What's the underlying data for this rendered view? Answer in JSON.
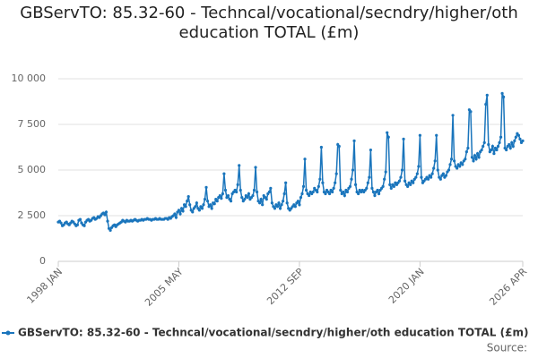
{
  "chart_data": {
    "type": "line",
    "title": "GBServTO: 85.32-60 - Techncal/vocational/secndry/higher/oth education TOTAL (£m)",
    "source": "Source:",
    "x": [
      "1998 JAN",
      "1998 FEB",
      "1998 MAR",
      "1998 APR",
      "1998 MAY",
      "1998 JUN",
      "1998 JUL",
      "1998 AUG",
      "1998 SEP",
      "1998 OCT",
      "1998 NOV",
      "1998 DEC",
      "1999 JAN",
      "1999 FEB",
      "1999 MAR",
      "1999 APR",
      "1999 MAY",
      "1999 JUN",
      "1999 JUL",
      "1999 AUG",
      "1999 SEP",
      "1999 OCT",
      "1999 NOV",
      "1999 DEC",
      "2000 JAN",
      "2000 FEB",
      "2000 MAR",
      "2000 APR",
      "2000 MAY",
      "2000 JUN",
      "2000 JUL",
      "2000 AUG",
      "2000 SEP",
      "2000 OCT",
      "2000 NOV",
      "2000 DEC",
      "2001 JAN",
      "2001 FEB",
      "2001 MAR",
      "2001 APR",
      "2001 MAY",
      "2001 JUN",
      "2001 JUL",
      "2001 AUG",
      "2001 SEP",
      "2001 OCT",
      "2001 NOV",
      "2001 DEC",
      "2002 JAN",
      "2002 FEB",
      "2002 MAR",
      "2002 APR",
      "2002 MAY",
      "2002 JUN",
      "2002 JUL",
      "2002 AUG",
      "2002 SEP",
      "2002 OCT",
      "2002 NOV",
      "2002 DEC",
      "2003 JAN",
      "2003 FEB",
      "2003 MAR",
      "2003 APR",
      "2003 MAY",
      "2003 JUN",
      "2003 JUL",
      "2003 AUG",
      "2003 SEP",
      "2003 OCT",
      "2003 NOV",
      "2003 DEC",
      "2004 JAN",
      "2004 FEB",
      "2004 MAR",
      "2004 APR",
      "2004 MAY",
      "2004 JUN",
      "2004 JUL",
      "2004 AUG",
      "2004 SEP",
      "2004 OCT",
      "2004 NOV",
      "2004 DEC",
      "2005 JAN",
      "2005 FEB",
      "2005 MAR",
      "2005 APR",
      "2005 MAY",
      "2005 JUN",
      "2005 JUL",
      "2005 AUG",
      "2005 SEP",
      "2005 OCT",
      "2005 NOV",
      "2005 DEC",
      "2006 JAN",
      "2006 FEB",
      "2006 MAR",
      "2006 APR",
      "2006 MAY",
      "2006 JUN",
      "2006 JUL",
      "2006 AUG",
      "2006 SEP",
      "2006 OCT",
      "2006 NOV",
      "2006 DEC",
      "2007 JAN",
      "2007 FEB",
      "2007 MAR",
      "2007 APR",
      "2007 MAY",
      "2007 JUN",
      "2007 JUL",
      "2007 AUG",
      "2007 SEP",
      "2007 OCT",
      "2007 NOV",
      "2007 DEC",
      "2008 JAN",
      "2008 FEB",
      "2008 MAR",
      "2008 APR",
      "2008 MAY",
      "2008 JUN",
      "2008 JUL",
      "2008 AUG",
      "2008 SEP",
      "2008 OCT",
      "2008 NOV",
      "2008 DEC",
      "2009 JAN",
      "2009 FEB",
      "2009 MAR",
      "2009 APR",
      "2009 MAY",
      "2009 JUN",
      "2009 JUL",
      "2009 AUG",
      "2009 SEP",
      "2009 OCT",
      "2009 NOV",
      "2009 DEC",
      "2010 JAN",
      "2010 FEB",
      "2010 MAR",
      "2010 APR",
      "2010 MAY",
      "2010 JUN",
      "2010 JUL",
      "2010 AUG",
      "2010 SEP",
      "2010 OCT",
      "2010 NOV",
      "2010 DEC",
      "2011 JAN",
      "2011 FEB",
      "2011 MAR",
      "2011 APR",
      "2011 MAY",
      "2011 JUN",
      "2011 JUL",
      "2011 AUG",
      "2011 SEP",
      "2011 OCT",
      "2011 NOV",
      "2011 DEC",
      "2012 JAN",
      "2012 FEB",
      "2012 MAR",
      "2012 APR",
      "2012 MAY",
      "2012 JUN",
      "2012 JUL",
      "2012 AUG",
      "2012 SEP",
      "2012 OCT",
      "2012 NOV",
      "2012 DEC",
      "2013 JAN",
      "2013 FEB",
      "2013 MAR",
      "2013 APR",
      "2013 MAY",
      "2013 JUN",
      "2013 JUL",
      "2013 AUG",
      "2013 SEP",
      "2013 OCT",
      "2013 NOV",
      "2013 DEC",
      "2014 JAN",
      "2014 FEB",
      "2014 MAR",
      "2014 APR",
      "2014 MAY",
      "2014 JUN",
      "2014 JUL",
      "2014 AUG",
      "2014 SEP",
      "2014 OCT",
      "2014 NOV",
      "2014 DEC",
      "2015 JAN",
      "2015 FEB",
      "2015 MAR",
      "2015 APR",
      "2015 MAY",
      "2015 JUN",
      "2015 JUL",
      "2015 AUG",
      "2015 SEP",
      "2015 OCT",
      "2015 NOV",
      "2015 DEC",
      "2016 JAN",
      "2016 FEB",
      "2016 MAR",
      "2016 APR",
      "2016 MAY",
      "2016 JUN",
      "2016 JUL",
      "2016 AUG",
      "2016 SEP",
      "2016 OCT",
      "2016 NOV",
      "2016 DEC",
      "2017 JAN",
      "2017 FEB",
      "2017 MAR",
      "2017 APR",
      "2017 MAY",
      "2017 JUN",
      "2017 JUL",
      "2017 AUG",
      "2017 SEP",
      "2017 OCT",
      "2017 NOV",
      "2017 DEC",
      "2018 JAN",
      "2018 FEB",
      "2018 MAR",
      "2018 APR",
      "2018 MAY",
      "2018 JUN",
      "2018 JUL",
      "2018 AUG",
      "2018 SEP",
      "2018 OCT",
      "2018 NOV",
      "2018 DEC",
      "2019 JAN",
      "2019 FEB",
      "2019 MAR",
      "2019 APR",
      "2019 MAY",
      "2019 JUN",
      "2019 JUL",
      "2019 AUG",
      "2019 SEP",
      "2019 OCT",
      "2019 NOV",
      "2019 DEC",
      "2020 JAN",
      "2020 FEB",
      "2020 MAR",
      "2020 APR",
      "2020 MAY",
      "2020 JUN",
      "2020 JUL",
      "2020 AUG",
      "2020 SEP",
      "2020 OCT",
      "2020 NOV",
      "2020 DEC",
      "2021 JAN",
      "2021 FEB",
      "2021 MAR",
      "2021 APR",
      "2021 MAY",
      "2021 JUN",
      "2021 JUL",
      "2021 AUG",
      "2021 SEP",
      "2021 OCT",
      "2021 NOV",
      "2021 DEC",
      "2022 JAN",
      "2022 FEB",
      "2022 MAR",
      "2022 APR",
      "2022 MAY",
      "2022 JUN",
      "2022 JUL",
      "2022 AUG",
      "2022 SEP",
      "2022 OCT",
      "2022 NOV",
      "2022 DEC",
      "2023 JAN",
      "2023 FEB",
      "2023 MAR",
      "2023 APR",
      "2023 MAY",
      "2023 JUN",
      "2023 JUL",
      "2023 AUG",
      "2023 SEP",
      "2023 OCT",
      "2023 NOV",
      "2023 DEC",
      "2024 JAN",
      "2024 FEB",
      "2024 MAR",
      "2024 APR",
      "2024 MAY",
      "2024 JUN",
      "2024 JUL",
      "2024 AUG",
      "2024 SEP",
      "2024 OCT",
      "2024 NOV",
      "2024 DEC",
      "2025 JAN",
      "2025 FEB",
      "2025 MAR",
      "2025 APR",
      "2025 MAY",
      "2025 JUN",
      "2025 JUL",
      "2025 AUG",
      "2025 SEP",
      "2025 OCT",
      "2025 NOV",
      "2025 DEC",
      "2026 JAN",
      "2026 FEB",
      "2026 MAR",
      "2026 APR"
    ],
    "series": [
      {
        "name": "GBServTO: 85.32-60 - Techncal/vocational/secndry/higher/oth education TOTAL (£m)",
        "color": "#1a75bc",
        "values": [
          2150,
          2200,
          2100,
          1950,
          2000,
          2100,
          2150,
          2050,
          2000,
          2100,
          2200,
          2150,
          2050,
          1950,
          2000,
          2250,
          2300,
          2100,
          2000,
          1950,
          2150,
          2250,
          2300,
          2200,
          2250,
          2350,
          2400,
          2300,
          2350,
          2450,
          2400,
          2500,
          2600,
          2650,
          2550,
          2700,
          2200,
          1800,
          1700,
          1850,
          1950,
          2000,
          1900,
          2000,
          2050,
          2100,
          2150,
          2250,
          2200,
          2150,
          2250,
          2200,
          2200,
          2250,
          2200,
          2250,
          2300,
          2250,
          2200,
          2250,
          2250,
          2300,
          2250,
          2300,
          2300,
          2350,
          2300,
          2300,
          2250,
          2300,
          2300,
          2350,
          2300,
          2300,
          2350,
          2300,
          2300,
          2300,
          2350,
          2350,
          2300,
          2400,
          2350,
          2450,
          2500,
          2600,
          2400,
          2700,
          2800,
          2600,
          2900,
          2750,
          3100,
          3000,
          3300,
          3550,
          3100,
          2800,
          2700,
          2900,
          3000,
          3200,
          2900,
          2800,
          3000,
          2900,
          3100,
          3400,
          4050,
          3300,
          3000,
          3100,
          2900,
          3200,
          3150,
          3400,
          3300,
          3500,
          3600,
          3450,
          3700,
          4800,
          3900,
          3500,
          3600,
          3400,
          3300,
          3700,
          3800,
          3900,
          3800,
          4200,
          5250,
          3900,
          3500,
          3300,
          3400,
          3600,
          3500,
          3700,
          3400,
          3500,
          3600,
          3900,
          5150,
          3800,
          3300,
          3200,
          3400,
          3100,
          3600,
          3500,
          3400,
          3700,
          3800,
          4000,
          3200,
          3000,
          2900,
          3100,
          3000,
          3200,
          2900,
          3100,
          3300,
          3700,
          4300,
          3200,
          2900,
          2800,
          2900,
          3000,
          3100,
          3000,
          3200,
          3300,
          3100,
          3500,
          3700,
          4100,
          5600,
          3900,
          3700,
          3600,
          3800,
          3700,
          3800,
          4000,
          3900,
          3800,
          4100,
          4500,
          6250,
          4300,
          3800,
          3700,
          3900,
          3800,
          3700,
          3900,
          3800,
          4000,
          4300,
          4800,
          6400,
          6300,
          3900,
          3700,
          3800,
          3600,
          3900,
          3800,
          4000,
          4100,
          4500,
          5000,
          6600,
          4200,
          3800,
          3700,
          3900,
          3800,
          3900,
          3800,
          3900,
          4000,
          4300,
          4600,
          6100,
          4000,
          3800,
          3600,
          3800,
          3900,
          3700,
          3900,
          4000,
          4100,
          4500,
          4900,
          7050,
          6800,
          4200,
          4000,
          4200,
          4100,
          4300,
          4200,
          4300,
          4400,
          4600,
          5000,
          6700,
          4400,
          4200,
          4100,
          4300,
          4200,
          4400,
          4300,
          4500,
          4600,
          4800,
          5200,
          6900,
          4600,
          4300,
          4400,
          4500,
          4600,
          4500,
          4700,
          4600,
          4800,
          5100,
          5500,
          6900,
          5000,
          4600,
          4500,
          4700,
          4800,
          4600,
          4700,
          4900,
          5000,
          5300,
          5600,
          8000,
          5500,
          5200,
          5100,
          5300,
          5200,
          5400,
          5300,
          5500,
          5600,
          6000,
          6200,
          8300,
          8200,
          5700,
          5500,
          5800,
          5600,
          5900,
          5700,
          6000,
          6100,
          6300,
          6500,
          8600,
          9100,
          6400,
          6000,
          6100,
          6300,
          5900,
          6200,
          6100,
          6300,
          6500,
          6800,
          9200,
          9000,
          6200,
          6100,
          6300,
          6400,
          6200,
          6500,
          6300,
          6600,
          6800,
          7000,
          6900,
          6700,
          6500,
          6600
        ]
      }
    ],
    "ylim": [
      0,
      10000
    ],
    "yticks": [
      0,
      {
        "value": 2500,
        "label": "2 500"
      },
      {
        "value": 5000,
        "label": "5 000"
      },
      {
        "value": 7500,
        "label": "7 500"
      },
      {
        "value": 10000,
        "label": "10 000"
      }
    ],
    "xticks": [
      "1998 JAN",
      "2005 MAY",
      "2012 SEP",
      "2020 JAN",
      "2026 APR"
    ],
    "grid": true
  }
}
